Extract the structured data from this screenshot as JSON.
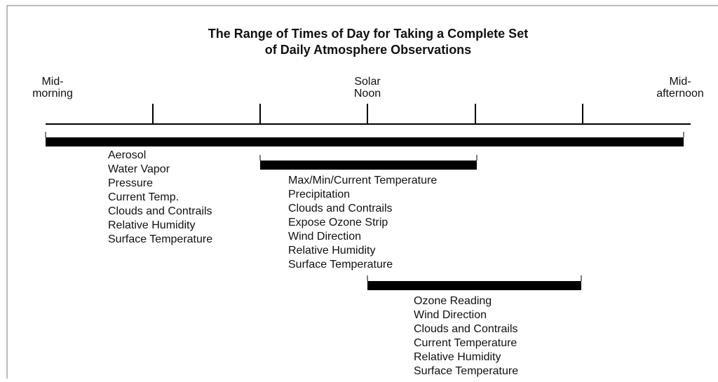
{
  "title": [
    "The Range of Times of Day for Taking a Complete Set",
    "of Daily Atmosphere Observations"
  ],
  "time_labels": [
    {
      "lines": [
        "Mid-",
        "morning"
      ]
    },
    {
      "lines": [
        "Solar",
        "Noon"
      ]
    },
    {
      "lines": [
        "Mid-",
        "afternoon"
      ]
    }
  ],
  "ranges": [
    {
      "items": [
        "Aerosol",
        "Water Vapor",
        "Pressure",
        "Current Temp.",
        "Clouds and Contrails",
        "Relative Humidity",
        "Surface Temperature"
      ]
    },
    {
      "items": [
        "Max/Min/Current Temperature",
        "Precipitation",
        "Clouds and Contrails",
        "Expose Ozone Strip",
        "Wind Direction",
        "Relative Humidity",
        "Surface Temperature"
      ]
    },
    {
      "items": [
        "Ozone Reading",
        "Wind Direction",
        "Clouds and Contrails",
        "Current Temperature",
        "Relative Humidity",
        "Surface Temperature"
      ]
    }
  ]
}
